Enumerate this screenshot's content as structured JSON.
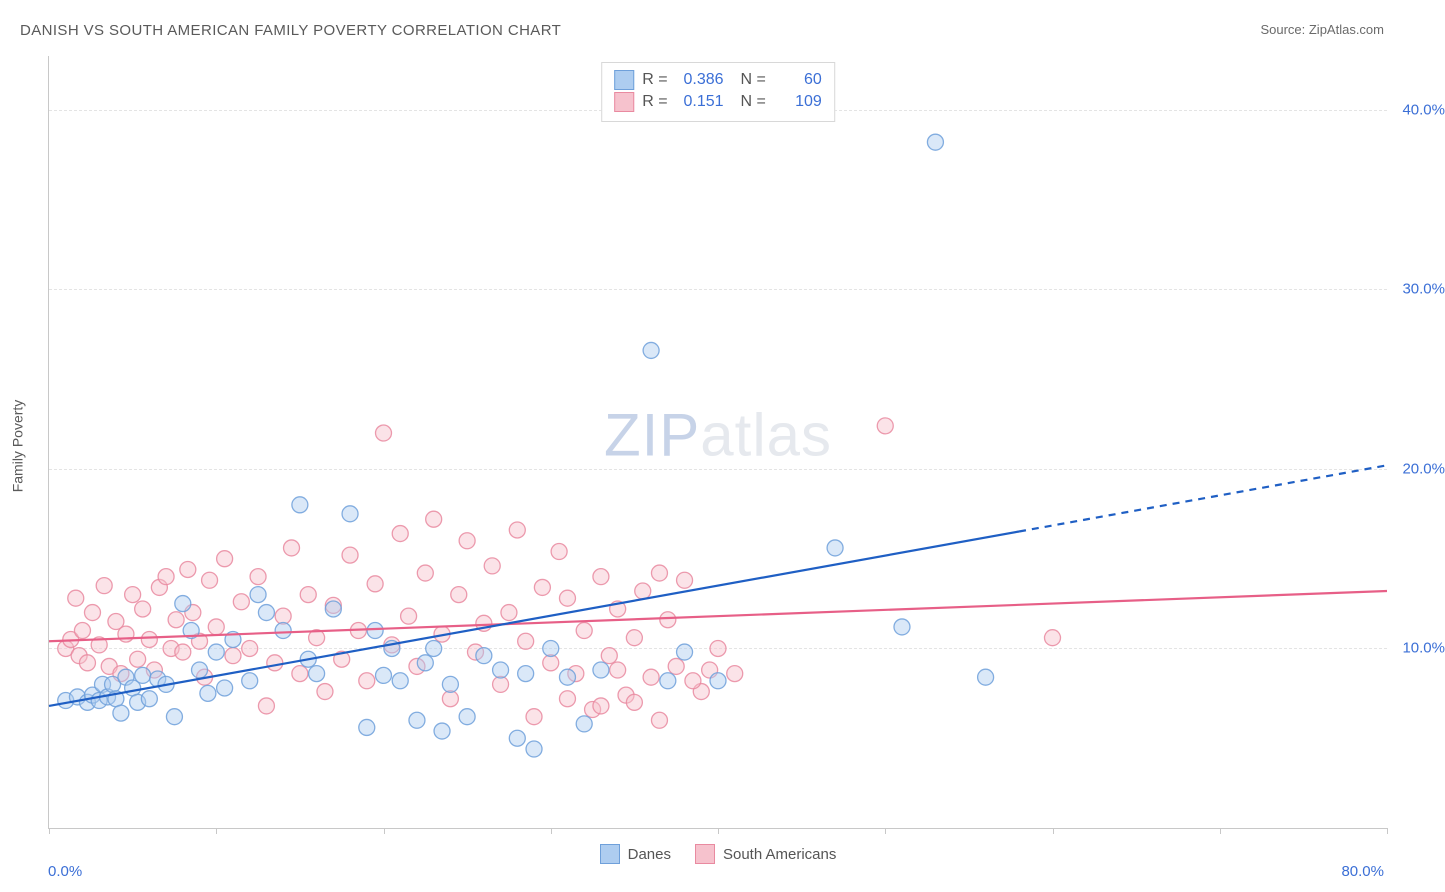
{
  "title": "DANISH VS SOUTH AMERICAN FAMILY POVERTY CORRELATION CHART",
  "source_prefix": "Source: ",
  "source_name": "ZipAtlas.com",
  "y_axis_title": "Family Poverty",
  "watermark_strong": "ZIP",
  "watermark_rest": "atlas",
  "chart": {
    "type": "scatter",
    "background_color": "#ffffff",
    "grid_color": "#e4e4e4",
    "axis_color": "#c8c8c8",
    "xlim": [
      0,
      80
    ],
    "ylim": [
      0,
      43
    ],
    "x_ticks": [
      0,
      10,
      20,
      30,
      40,
      50,
      60,
      70,
      80
    ],
    "x_tick_label_left": "0.0%",
    "x_tick_label_right": "80.0%",
    "y_ticks": [
      10,
      20,
      30,
      40
    ],
    "y_tick_labels": [
      "10.0%",
      "20.0%",
      "30.0%",
      "40.0%"
    ],
    "marker_radius": 8,
    "marker_opacity": 0.45,
    "marker_stroke_opacity": 0.85,
    "line_width": 2.2,
    "series": [
      {
        "key": "danes",
        "label": "Danes",
        "fill": "#aecdf0",
        "stroke": "#6fa0da",
        "trend_color": "#1f5fc4",
        "trend_solid_until_x": 58,
        "trend": {
          "x1": 0,
          "y1": 6.8,
          "x2": 80,
          "y2": 20.2
        },
        "R": "0.386",
        "N": "60",
        "points": [
          [
            1,
            7.1
          ],
          [
            1.7,
            7.3
          ],
          [
            2.3,
            7.0
          ],
          [
            2.6,
            7.4
          ],
          [
            3,
            7.1
          ],
          [
            3.2,
            8.0
          ],
          [
            3.5,
            7.3
          ],
          [
            3.8,
            8
          ],
          [
            4,
            7.2
          ],
          [
            4.3,
            6.4
          ],
          [
            4.6,
            8.4
          ],
          [
            5,
            7.8
          ],
          [
            5.3,
            7
          ],
          [
            5.6,
            8.5
          ],
          [
            6,
            7.2
          ],
          [
            6.5,
            8.3
          ],
          [
            7,
            8
          ],
          [
            7.5,
            6.2
          ],
          [
            8,
            12.5
          ],
          [
            8.5,
            11
          ],
          [
            9,
            8.8
          ],
          [
            9.5,
            7.5
          ],
          [
            10,
            9.8
          ],
          [
            10.5,
            7.8
          ],
          [
            11,
            10.5
          ],
          [
            12,
            8.2
          ],
          [
            12.5,
            13
          ],
          [
            13,
            12
          ],
          [
            14,
            11
          ],
          [
            15,
            18
          ],
          [
            15.5,
            9.4
          ],
          [
            16,
            8.6
          ],
          [
            17,
            12.2
          ],
          [
            18,
            17.5
          ],
          [
            19,
            5.6
          ],
          [
            19.5,
            11
          ],
          [
            20,
            8.5
          ],
          [
            20.5,
            10
          ],
          [
            21,
            8.2
          ],
          [
            22,
            6
          ],
          [
            22.5,
            9.2
          ],
          [
            23,
            10
          ],
          [
            23.5,
            5.4
          ],
          [
            24,
            8
          ],
          [
            25,
            6.2
          ],
          [
            26,
            9.6
          ],
          [
            27,
            8.8
          ],
          [
            28,
            5
          ],
          [
            28.5,
            8.6
          ],
          [
            29,
            4.4
          ],
          [
            30,
            10
          ],
          [
            31,
            8.4
          ],
          [
            32,
            5.8
          ],
          [
            33,
            8.8
          ],
          [
            36,
            26.6
          ],
          [
            37,
            8.2
          ],
          [
            38,
            9.8
          ],
          [
            40,
            8.2
          ],
          [
            47,
            15.6
          ],
          [
            53,
            38.2
          ],
          [
            51,
            11.2
          ],
          [
            56,
            8.4
          ]
        ]
      },
      {
        "key": "south_americans",
        "label": "South Americans",
        "fill": "#f6c2cd",
        "stroke": "#e98aa0",
        "trend_color": "#e75f87",
        "trend_solid_until_x": 80,
        "trend": {
          "x1": 0,
          "y1": 10.4,
          "x2": 80,
          "y2": 13.2
        },
        "R": "0.151",
        "N": "109",
        "points": [
          [
            1,
            10
          ],
          [
            1.3,
            10.5
          ],
          [
            1.6,
            12.8
          ],
          [
            1.8,
            9.6
          ],
          [
            2,
            11
          ],
          [
            2.3,
            9.2
          ],
          [
            2.6,
            12
          ],
          [
            3,
            10.2
          ],
          [
            3.3,
            13.5
          ],
          [
            3.6,
            9
          ],
          [
            4,
            11.5
          ],
          [
            4.3,
            8.6
          ],
          [
            4.6,
            10.8
          ],
          [
            5,
            13
          ],
          [
            5.3,
            9.4
          ],
          [
            5.6,
            12.2
          ],
          [
            6,
            10.5
          ],
          [
            6.3,
            8.8
          ],
          [
            6.6,
            13.4
          ],
          [
            7,
            14
          ],
          [
            7.3,
            10
          ],
          [
            7.6,
            11.6
          ],
          [
            8,
            9.8
          ],
          [
            8.3,
            14.4
          ],
          [
            8.6,
            12
          ],
          [
            9,
            10.4
          ],
          [
            9.3,
            8.4
          ],
          [
            9.6,
            13.8
          ],
          [
            10,
            11.2
          ],
          [
            10.5,
            15
          ],
          [
            11,
            9.6
          ],
          [
            11.5,
            12.6
          ],
          [
            12,
            10
          ],
          [
            12.5,
            14
          ],
          [
            13,
            6.8
          ],
          [
            13.5,
            9.2
          ],
          [
            14,
            11.8
          ],
          [
            14.5,
            15.6
          ],
          [
            15,
            8.6
          ],
          [
            15.5,
            13
          ],
          [
            16,
            10.6
          ],
          [
            16.5,
            7.6
          ],
          [
            17,
            12.4
          ],
          [
            17.5,
            9.4
          ],
          [
            18,
            15.2
          ],
          [
            18.5,
            11
          ],
          [
            19,
            8.2
          ],
          [
            19.5,
            13.6
          ],
          [
            20,
            22
          ],
          [
            20.5,
            10.2
          ],
          [
            21,
            16.4
          ],
          [
            21.5,
            11.8
          ],
          [
            22,
            9
          ],
          [
            22.5,
            14.2
          ],
          [
            23,
            17.2
          ],
          [
            23.5,
            10.8
          ],
          [
            24,
            7.2
          ],
          [
            24.5,
            13
          ],
          [
            25,
            16
          ],
          [
            25.5,
            9.8
          ],
          [
            26,
            11.4
          ],
          [
            26.5,
            14.6
          ],
          [
            27,
            8
          ],
          [
            27.5,
            12
          ],
          [
            28,
            16.6
          ],
          [
            28.5,
            10.4
          ],
          [
            29,
            6.2
          ],
          [
            29.5,
            13.4
          ],
          [
            30,
            9.2
          ],
          [
            30.5,
            15.4
          ],
          [
            31,
            12.8
          ],
          [
            31.5,
            8.6
          ],
          [
            32,
            11
          ],
          [
            32.5,
            6.6
          ],
          [
            33,
            14
          ],
          [
            33.5,
            9.6
          ],
          [
            34,
            12.2
          ],
          [
            34.5,
            7.4
          ],
          [
            35,
            10.6
          ],
          [
            35.5,
            13.2
          ],
          [
            36,
            8.4
          ],
          [
            36.5,
            6
          ],
          [
            37,
            11.6
          ],
          [
            37.5,
            9
          ],
          [
            38,
            13.8
          ],
          [
            39,
            7.6
          ],
          [
            40,
            10
          ],
          [
            36.5,
            14.2
          ],
          [
            38.5,
            8.2
          ],
          [
            31,
            7.2
          ],
          [
            33,
            6.8
          ],
          [
            34,
            8.8
          ],
          [
            35,
            7
          ],
          [
            39.5,
            8.8
          ],
          [
            41,
            8.6
          ],
          [
            50,
            22.4
          ],
          [
            60,
            10.6
          ]
        ]
      }
    ]
  }
}
